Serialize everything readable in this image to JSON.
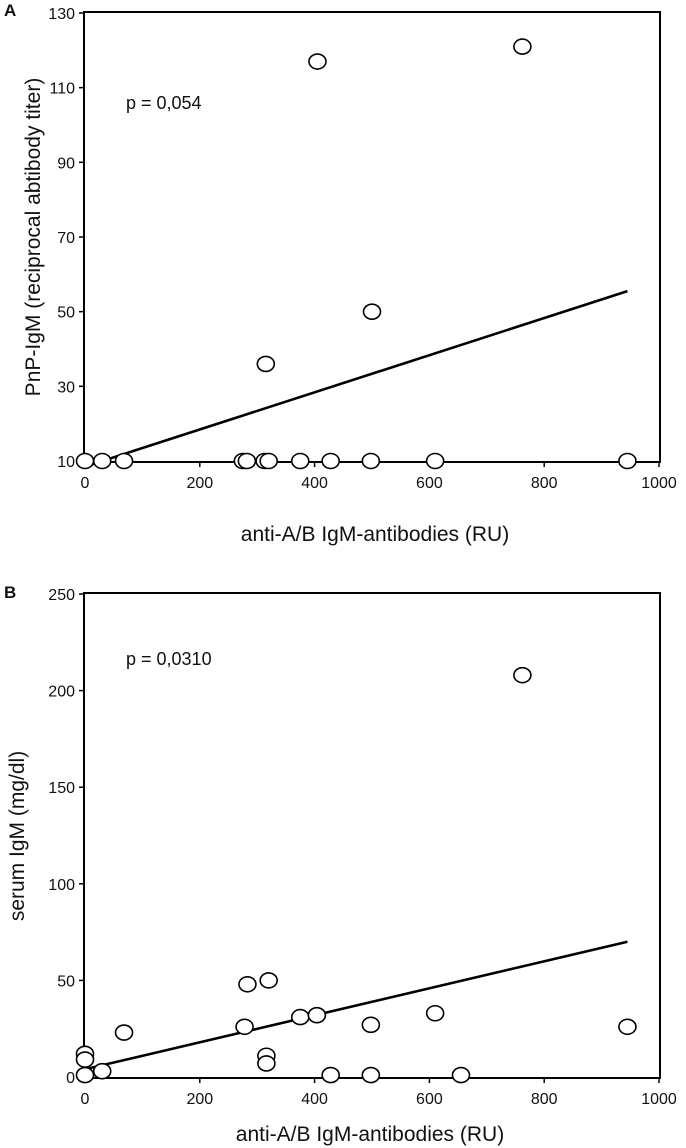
{
  "chart_data": [
    {
      "type": "scatter",
      "panel_label": "A",
      "annotation": "p = 0,054",
      "xlabel": "anti-A/B IgM-antibodies (RU)",
      "ylabel": "PnP-IgM (reciprocal abtibody titer)",
      "xlim": [
        0,
        1000
      ],
      "ylim": [
        10,
        130
      ],
      "x_ticks": [
        0,
        200,
        400,
        600,
        800,
        1000
      ],
      "y_ticks": [
        10,
        30,
        50,
        70,
        90,
        110,
        130
      ],
      "grid": false,
      "points": [
        {
          "x": 0,
          "y": 10
        },
        {
          "x": 30,
          "y": 10
        },
        {
          "x": 68,
          "y": 10
        },
        {
          "x": 275,
          "y": 10
        },
        {
          "x": 282,
          "y": 10
        },
        {
          "x": 313,
          "y": 10
        },
        {
          "x": 320,
          "y": 10
        },
        {
          "x": 375,
          "y": 10
        },
        {
          "x": 428,
          "y": 10
        },
        {
          "x": 498,
          "y": 10
        },
        {
          "x": 610,
          "y": 10
        },
        {
          "x": 945,
          "y": 10
        },
        {
          "x": 315,
          "y": 36
        },
        {
          "x": 500,
          "y": 50
        },
        {
          "x": 405,
          "y": 117
        },
        {
          "x": 762,
          "y": 121
        }
      ],
      "trendline": {
        "x": [
          0,
          945
        ],
        "y": [
          8.5,
          55.5
        ]
      }
    },
    {
      "type": "scatter",
      "panel_label": "B",
      "annotation": "p = 0,0310",
      "xlabel": "anti-A/B IgM-antibodies (RU)",
      "ylabel": "serum IgM (mg/dl)",
      "xlim": [
        0,
        1000
      ],
      "ylim": [
        0,
        250
      ],
      "x_ticks": [
        0,
        200,
        400,
        600,
        800,
        1000
      ],
      "y_ticks": [
        0,
        50,
        100,
        150,
        200,
        250
      ],
      "grid": false,
      "points": [
        {
          "x": 0,
          "y": 12
        },
        {
          "x": 0,
          "y": 9
        },
        {
          "x": 0,
          "y": 1
        },
        {
          "x": 30,
          "y": 3
        },
        {
          "x": 68,
          "y": 23
        },
        {
          "x": 278,
          "y": 26
        },
        {
          "x": 283,
          "y": 48
        },
        {
          "x": 316,
          "y": 11
        },
        {
          "x": 316,
          "y": 7
        },
        {
          "x": 320,
          "y": 50
        },
        {
          "x": 375,
          "y": 31
        },
        {
          "x": 404,
          "y": 32
        },
        {
          "x": 428,
          "y": 1
        },
        {
          "x": 498,
          "y": 27
        },
        {
          "x": 498,
          "y": 1
        },
        {
          "x": 610,
          "y": 33
        },
        {
          "x": 655,
          "y": 1
        },
        {
          "x": 762,
          "y": 208
        },
        {
          "x": 945,
          "y": 26
        }
      ],
      "trendline": {
        "x": [
          0,
          945
        ],
        "y": [
          4,
          70
        ]
      }
    }
  ]
}
